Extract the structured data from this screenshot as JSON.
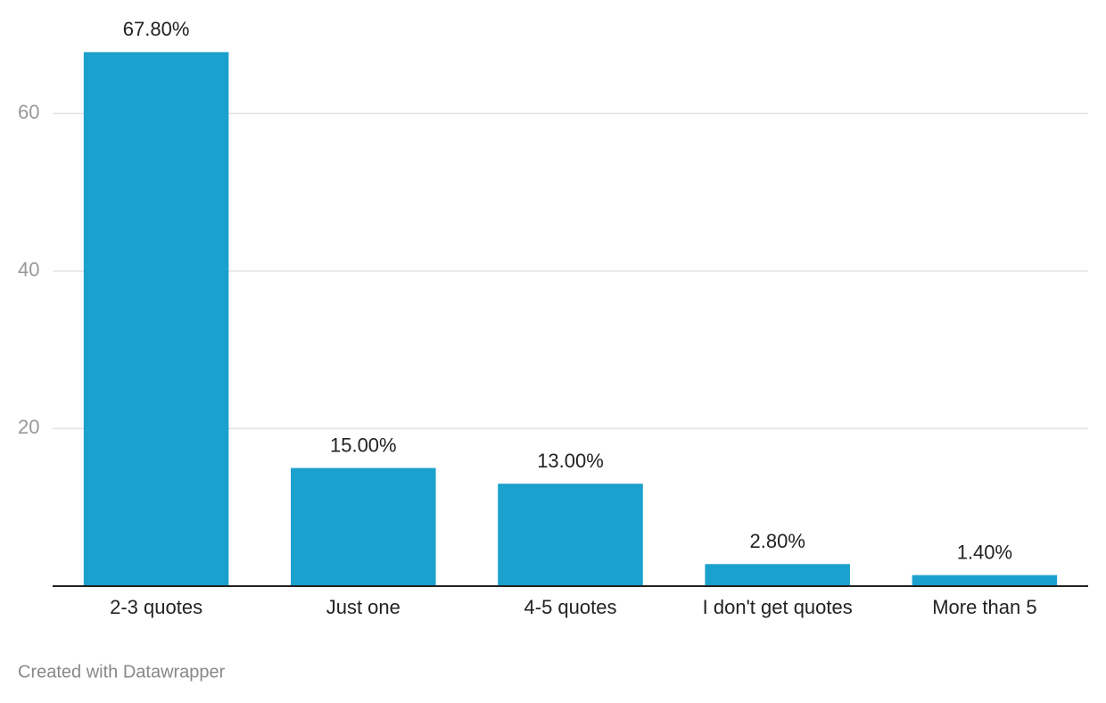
{
  "chart_data": {
    "type": "bar",
    "categories": [
      "2-3 quotes",
      "Just one",
      "4-5 quotes",
      "I don't get quotes",
      "More than 5"
    ],
    "values": [
      67.8,
      15,
      13,
      2.8,
      1.4
    ],
    "value_labels": [
      "67.80%",
      "15.00%",
      "13.00%",
      "2.80%",
      "1.40%"
    ],
    "color": "#1ba1cd",
    "ylim": [
      0,
      70
    ],
    "yticks": [
      20,
      40,
      60
    ],
    "grid": true
  },
  "footer": {
    "credit": "Created with Datawrapper"
  }
}
